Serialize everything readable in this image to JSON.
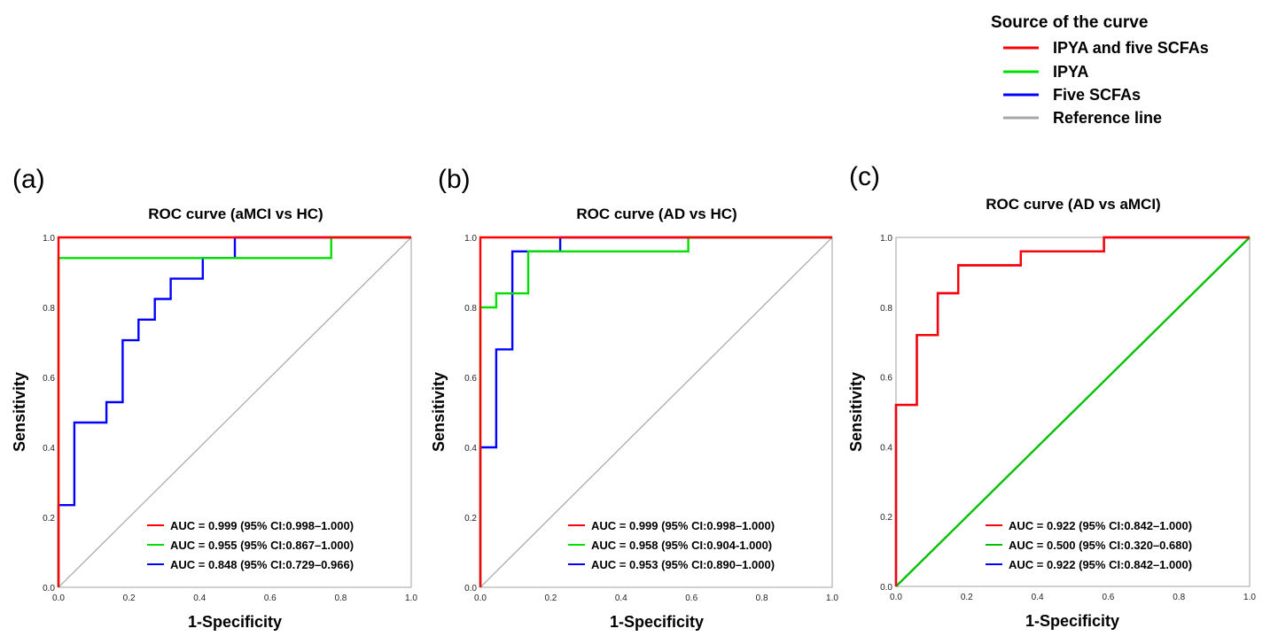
{
  "legend": {
    "title": "Source of  the curve",
    "items": [
      {
        "label": "IPYA and five SCFAs",
        "color": "#ff0000"
      },
      {
        "label": "IPYA",
        "color": "#00e000"
      },
      {
        "label": "Five SCFAs",
        "color": "#0000ff"
      },
      {
        "label": "Reference line",
        "color": "#a6a6a6"
      }
    ]
  },
  "chart_data": [
    {
      "type": "line",
      "panel_label": "(a)",
      "title": "ROC curve (aMCI vs HC)",
      "xlabel": "1-Specificity",
      "ylabel": "Sensitivity",
      "xlim": [
        0,
        1
      ],
      "ylim": [
        0,
        1
      ],
      "ticks": [
        "0.0",
        "0.2",
        "0.4",
        "0.6",
        "0.8",
        "1.0"
      ],
      "reference": "diagonal",
      "reference_color": "#a6a6a6",
      "series": [
        {
          "name": "IPYA and five SCFAs",
          "color": "#ff0000",
          "auc_text": "AUC = 0.999 (95% CI:0.998–1.000)",
          "x": [
            0,
            0,
            1
          ],
          "y": [
            0,
            1,
            1
          ]
        },
        {
          "name": "IPYA",
          "color": "#00e000",
          "auc_text": "AUC = 0.955 (95% CI:0.867–1.000)",
          "x": [
            0,
            0,
            0.773,
            0.773,
            1
          ],
          "y": [
            0,
            0.941,
            0.941,
            1,
            1
          ]
        },
        {
          "name": "Five SCFAs",
          "color": "#0000ff",
          "auc_text": "AUC = 0.848 (95% CI:0.729–0.966)",
          "x": [
            0,
            0,
            0.045,
            0.045,
            0.136,
            0.136,
            0.182,
            0.182,
            0.227,
            0.227,
            0.273,
            0.273,
            0.318,
            0.318,
            0.409,
            0.409,
            0.5,
            0.5,
            1
          ],
          "y": [
            0,
            0.235,
            0.235,
            0.471,
            0.471,
            0.529,
            0.529,
            0.706,
            0.706,
            0.765,
            0.765,
            0.824,
            0.824,
            0.882,
            0.882,
            0.941,
            0.941,
            1,
            1
          ]
        }
      ]
    },
    {
      "type": "line",
      "panel_label": "(b)",
      "title": "ROC curve (AD vs HC)",
      "xlabel": "1-Specificity",
      "ylabel": "Sensitivity",
      "xlim": [
        0,
        1
      ],
      "ylim": [
        0,
        1
      ],
      "ticks": [
        "0.0",
        "0.2",
        "0.4",
        "0.6",
        "0.8",
        "1.0"
      ],
      "reference": "diagonal",
      "reference_color": "#a6a6a6",
      "series": [
        {
          "name": "IPYA and five SCFAs",
          "color": "#ff0000",
          "auc_text": "AUC = 0.999 (95% CI:0.998–1.000)",
          "x": [
            0,
            0,
            1
          ],
          "y": [
            0,
            1,
            1
          ]
        },
        {
          "name": "IPYA",
          "color": "#00e000",
          "auc_text": "AUC = 0.958 (95% CI:0.904-1.000)",
          "x": [
            0,
            0,
            0.045,
            0.045,
            0.136,
            0.136,
            0.591,
            0.591,
            1
          ],
          "y": [
            0,
            0.8,
            0.8,
            0.84,
            0.84,
            0.96,
            0.96,
            1,
            1
          ]
        },
        {
          "name": "Five SCFAs",
          "color": "#0000ff",
          "auc_text": "AUC = 0.953 (95% CI:0.890–1.000)",
          "x": [
            0,
            0,
            0.045,
            0.045,
            0.091,
            0.091,
            0.227,
            0.227,
            1
          ],
          "y": [
            0,
            0.4,
            0.4,
            0.68,
            0.68,
            0.96,
            0.96,
            1,
            1
          ]
        }
      ]
    },
    {
      "type": "line",
      "panel_label": "(c)",
      "title": "ROC curve (AD vs aMCI)",
      "xlabel": "1-Specificity",
      "ylabel": "Sensitivity",
      "xlim": [
        0,
        1
      ],
      "ylim": [
        0,
        1
      ],
      "ticks": [
        "0.0",
        "0.2",
        "0.4",
        "0.6",
        "0.8",
        "1.0"
      ],
      "reference": "none",
      "series": [
        {
          "name": "IPYA and five SCFAs",
          "color": "#ff0000",
          "auc_text": "AUC = 0.922 (95% CI:0.842–1.000)",
          "x": [
            0,
            0,
            0.059,
            0.059,
            0.118,
            0.118,
            0.176,
            0.176,
            0.353,
            0.353,
            0.588,
            0.588,
            1
          ],
          "y": [
            0,
            0.52,
            0.52,
            0.72,
            0.72,
            0.84,
            0.84,
            0.92,
            0.92,
            0.96,
            0.96,
            1,
            1
          ]
        },
        {
          "name": "IPYA",
          "color": "#00c000",
          "auc_text": "AUC = 0.500 (95% CI:0.320–0.680)",
          "x": [
            0,
            1
          ],
          "y": [
            0,
            1
          ]
        },
        {
          "name": "Five SCFAs",
          "color": "#6a1fbf",
          "auc_text": "AUC = 0.922 (95% CI:0.842–1.000)",
          "legend_color": "#0000ff",
          "x": [
            0,
            0,
            0.059,
            0.059,
            0.118,
            0.118,
            0.176,
            0.176,
            0.353,
            0.353,
            0.588,
            0.588,
            1
          ],
          "y": [
            0,
            0.52,
            0.52,
            0.72,
            0.72,
            0.84,
            0.84,
            0.92,
            0.92,
            0.96,
            0.96,
            1,
            1
          ]
        }
      ]
    }
  ]
}
